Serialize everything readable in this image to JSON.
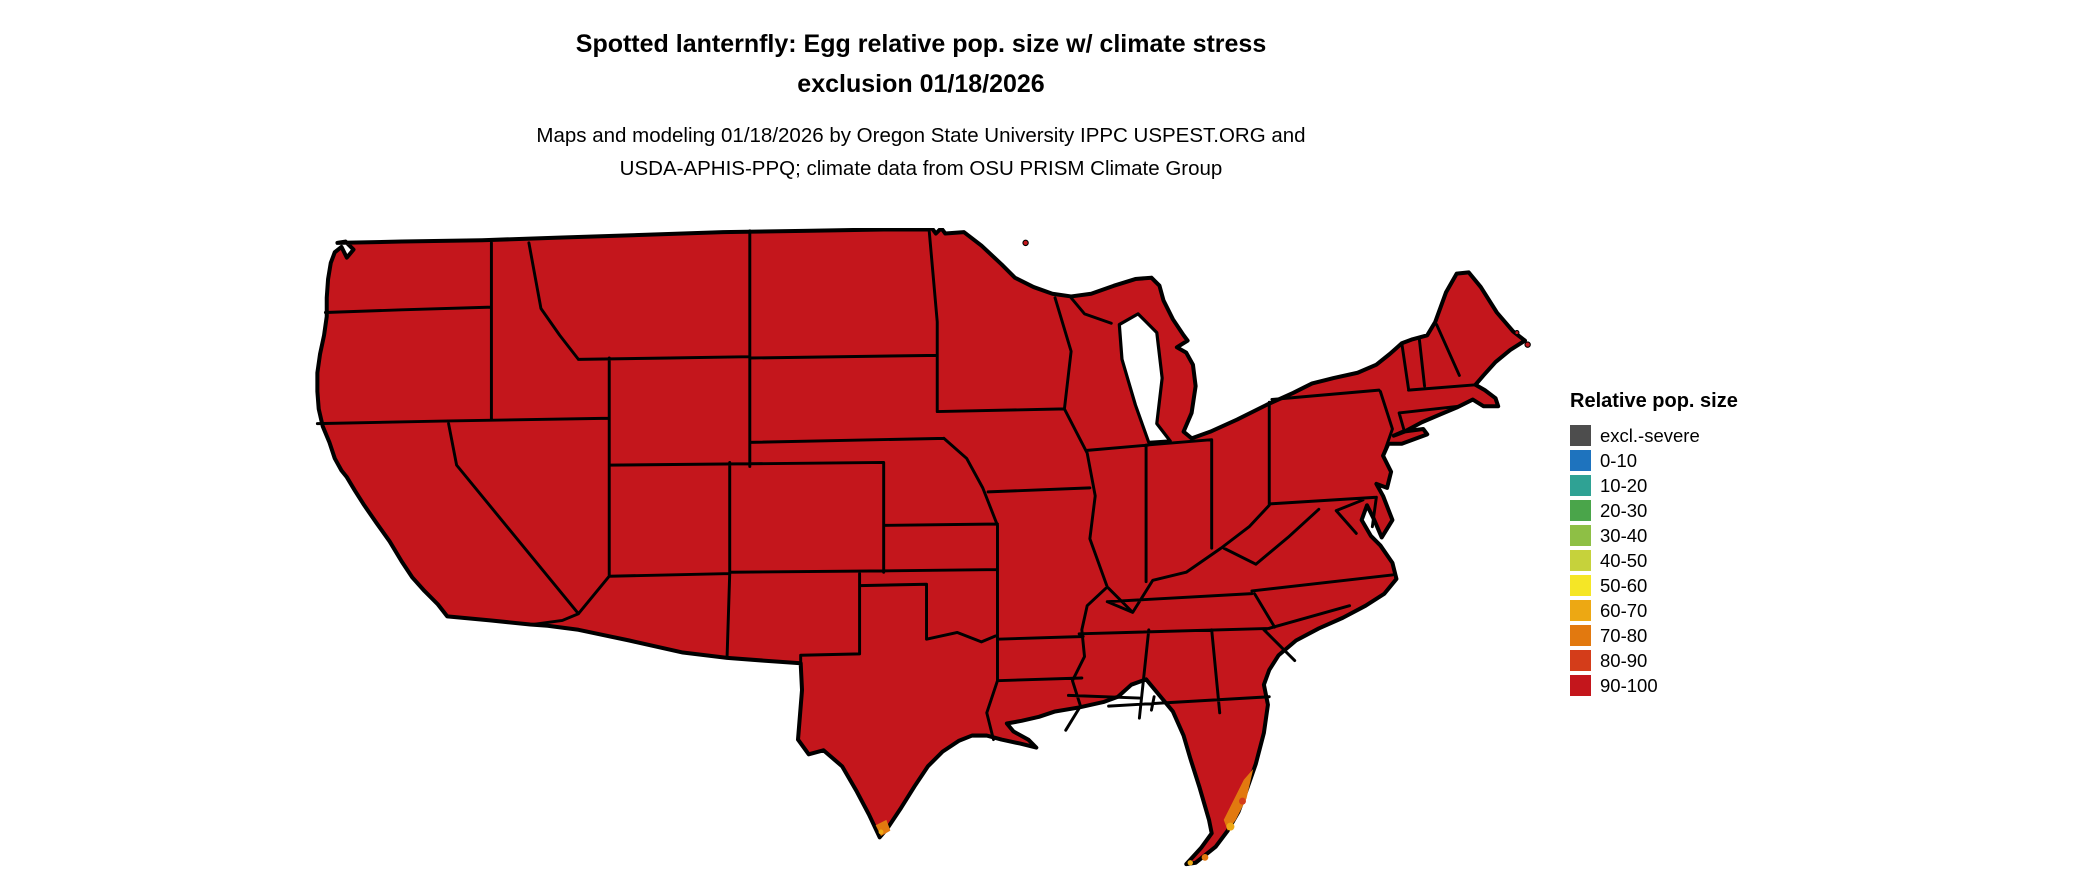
{
  "title": {
    "line1": "Spotted lanternfly: Egg relative pop. size w/ climate stress",
    "line2": "exclusion 01/18/2026"
  },
  "subtitle": {
    "line1": "Maps and modeling 01/18/2026 by Oregon State University IPPC USPEST.ORG and",
    "line2": "USDA-APHIS-PPQ; climate data from OSU PRISM Climate Group"
  },
  "legend": {
    "title": "Relative pop. size",
    "items": [
      {
        "label": "excl.-severe",
        "color": "#4d4d4d"
      },
      {
        "label": "0-10",
        "color": "#1e73be"
      },
      {
        "label": "10-20",
        "color": "#2fa294"
      },
      {
        "label": "20-30",
        "color": "#4aa54a"
      },
      {
        "label": "30-40",
        "color": "#8ebf45"
      },
      {
        "label": "40-50",
        "color": "#c6d23b"
      },
      {
        "label": "50-60",
        "color": "#f5e626"
      },
      {
        "label": "60-70",
        "color": "#eda813"
      },
      {
        "label": "70-80",
        "color": "#e2790f"
      },
      {
        "label": "80-90",
        "color": "#d43d1a"
      },
      {
        "label": "90-100",
        "color": "#c4161c"
      }
    ]
  },
  "map": {
    "land_fill": "#c4161c",
    "border_color": "#000000",
    "background": "#ffffff",
    "dominant_class": "90-100",
    "lower_value_areas": [
      "southern Florida tip",
      "southern Texas tip"
    ]
  },
  "chart_data": {
    "type": "choropleth",
    "title": "Spotted lanternfly: Egg relative pop. size w/ climate stress exclusion 01/18/2026",
    "legend_title": "Relative pop. size",
    "classes": [
      "excl.-severe",
      "0-10",
      "10-20",
      "20-30",
      "30-40",
      "40-50",
      "50-60",
      "60-70",
      "70-80",
      "80-90",
      "90-100"
    ],
    "class_colors": [
      "#4d4d4d",
      "#1e73be",
      "#2fa294",
      "#4aa54a",
      "#8ebf45",
      "#c6d23b",
      "#f5e626",
      "#eda813",
      "#e2790f",
      "#d43d1a",
      "#c4161c"
    ],
    "observation": "Nearly the entire contiguous United States is in the 90-100 class (dark red); small patches of 60-90 classes (orange tones) appear at the southern tips of Florida and Texas."
  }
}
